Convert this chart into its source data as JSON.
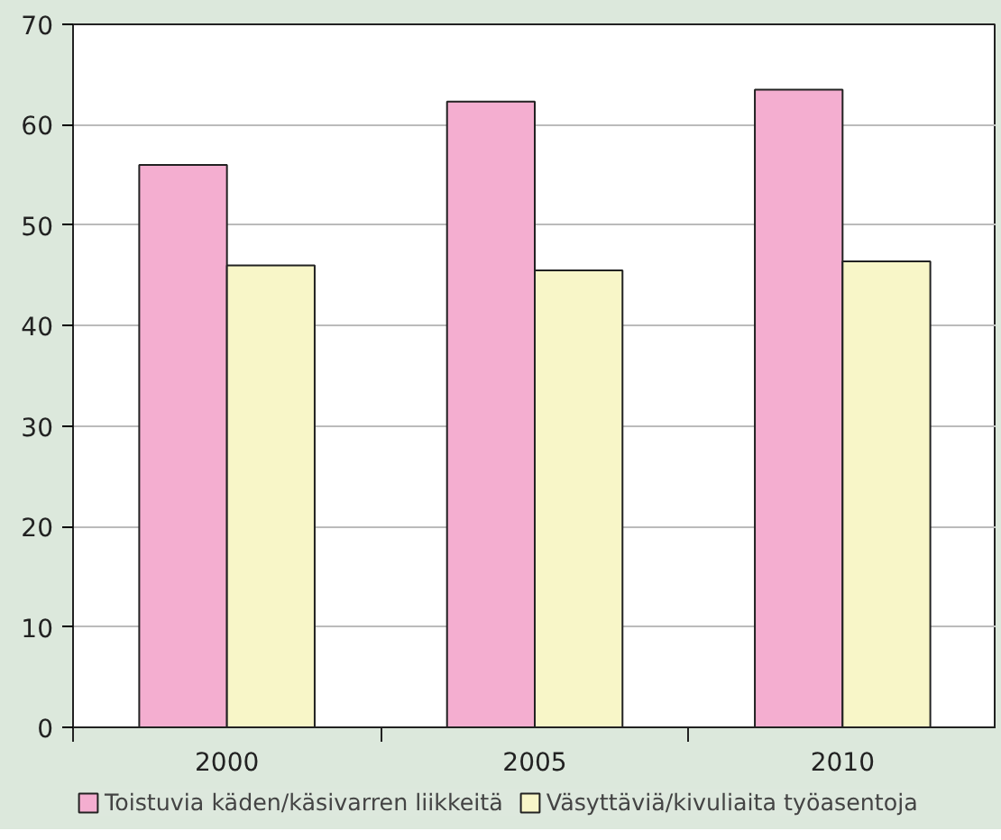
{
  "chart_data": {
    "type": "bar",
    "categories": [
      "2000",
      "2005",
      "2010"
    ],
    "series": [
      {
        "name": "Toistuvia käden/käsivarren liikkeitä",
        "color": "#f4aed0",
        "values": [
          56.0,
          62.3,
          63.5
        ]
      },
      {
        "name": "Väsyttäviä/kivuliaita työasentoja",
        "color": "#f8f6c8",
        "values": [
          46.0,
          45.5,
          46.4
        ]
      }
    ],
    "ylim": [
      0,
      70
    ],
    "yticks": [
      0,
      10,
      20,
      30,
      40,
      50,
      60,
      70
    ],
    "grid": "y",
    "legend": "bottom"
  }
}
